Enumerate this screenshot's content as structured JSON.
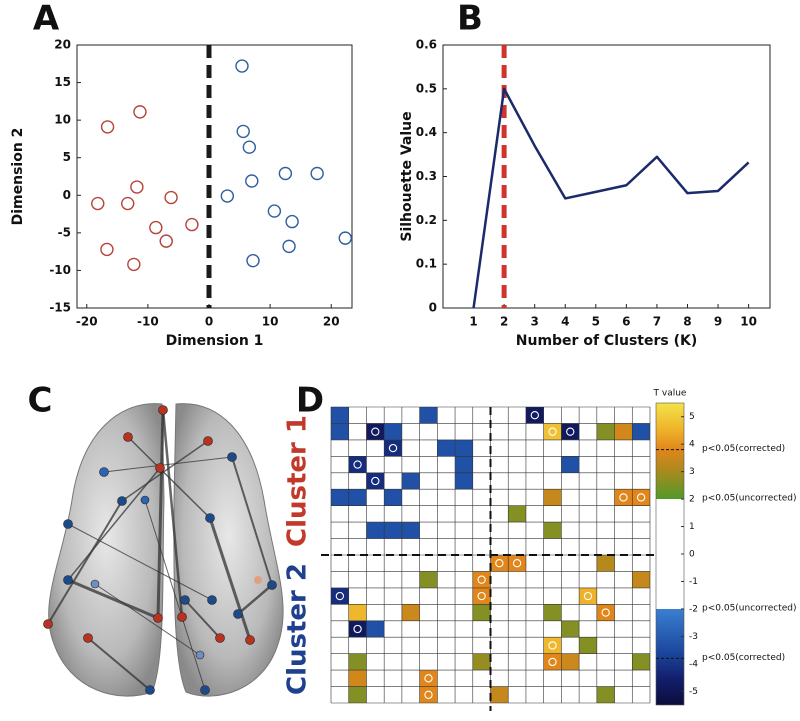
{
  "chart_data": [
    {
      "type": "scatter",
      "panel": "A",
      "xlabel": "Dimension 1",
      "ylabel": "Dimension 2",
      "xlim": [
        -21.6,
        23.4
      ],
      "xticks": [
        -20,
        -10,
        0,
        10,
        20
      ],
      "ylim": [
        -15,
        20
      ],
      "yticks": [
        -15,
        -10,
        -5,
        0,
        5,
        10,
        15,
        20
      ],
      "vline": 0,
      "vline_color": "#1a1a1a",
      "series": [
        {
          "color": "#b5443a",
          "x": [
            -16.6,
            -11.3,
            -18.2,
            -11.8,
            -13.3,
            -6.2,
            -8.7,
            -2.8,
            -7.0,
            -16.7,
            -12.3
          ],
          "y": [
            9.1,
            11.1,
            -1.1,
            1.1,
            -1.1,
            -0.3,
            -4.3,
            -3.9,
            -6.1,
            -7.2,
            -9.2
          ]
        },
        {
          "color": "#2f5f9e",
          "x": [
            5.4,
            5.6,
            6.6,
            7.0,
            3.0,
            12.5,
            17.7,
            10.7,
            13.6,
            13.1,
            7.2,
            22.3
          ],
          "y": [
            17.2,
            8.5,
            6.4,
            1.9,
            -0.1,
            2.9,
            2.9,
            -2.1,
            -3.5,
            -6.8,
            -8.7,
            -5.7
          ]
        }
      ]
    },
    {
      "type": "line",
      "panel": "B",
      "xlabel": "Number of Clusters (K)",
      "ylabel": "Silhouette Value",
      "x": [
        1,
        2,
        3,
        4,
        5,
        6,
        7,
        8,
        9,
        10
      ],
      "values": [
        0,
        0.5,
        0.37,
        0.25,
        0.265,
        0.28,
        0.345,
        0.262,
        0.267,
        0.332
      ],
      "color": "#1b2a6b",
      "xlim": [
        0,
        10.7
      ],
      "xticks": [
        1,
        2,
        3,
        4,
        5,
        6,
        7,
        8,
        9,
        10
      ],
      "ylim": [
        0,
        0.6
      ],
      "yticks": [
        0,
        0.1,
        0.2,
        0.3,
        0.4,
        0.5,
        0.6
      ],
      "vline": 2,
      "vline_color": "#d0342c"
    },
    {
      "type": "image",
      "panel": "C"
    },
    {
      "type": "heatmap",
      "panel": "D",
      "colorbar_title": "T value",
      "group_labels": [
        {
          "label": "Cluster 1",
          "color": "#c0392b"
        },
        {
          "label": "Cluster 2",
          "color": "#1f3f8f"
        }
      ],
      "divider": 9,
      "values": [
        [
          -3.3,
          null,
          null,
          null,
          null,
          -3.3,
          null,
          null,
          null,
          null,
          null,
          -4.8,
          null,
          null,
          null,
          null,
          null,
          null
        ],
        [
          -3.3,
          null,
          -4.8,
          -3.3,
          null,
          null,
          null,
          null,
          null,
          null,
          null,
          null,
          4.8,
          -4.8,
          null,
          2.6,
          3.6,
          -3.3
        ],
        [
          null,
          null,
          null,
          -4.2,
          null,
          null,
          -3.3,
          -3.3,
          null,
          null,
          null,
          null,
          null,
          null,
          null,
          null,
          null,
          null
        ],
        [
          null,
          -4.2,
          null,
          null,
          null,
          null,
          null,
          -3.3,
          null,
          null,
          null,
          null,
          null,
          -3.3,
          null,
          null,
          null,
          null
        ],
        [
          null,
          null,
          -4.2,
          null,
          -3.3,
          null,
          null,
          -3.3,
          null,
          null,
          null,
          null,
          null,
          null,
          null,
          null,
          null,
          null
        ],
        [
          -3.3,
          -3.3,
          null,
          -3.3,
          null,
          null,
          null,
          null,
          null,
          null,
          null,
          null,
          3.4,
          null,
          null,
          null,
          3.8,
          3.8
        ],
        [
          null,
          null,
          null,
          null,
          null,
          null,
          null,
          null,
          null,
          null,
          2.6,
          null,
          null,
          null,
          null,
          null,
          null,
          null
        ],
        [
          null,
          null,
          -3.3,
          -3.3,
          -3.3,
          null,
          null,
          null,
          null,
          null,
          null,
          null,
          2.6,
          null,
          null,
          null,
          null,
          null
        ],
        [
          null,
          null,
          null,
          null,
          null,
          null,
          null,
          null,
          null,
          null,
          null,
          null,
          null,
          null,
          null,
          null,
          null,
          null
        ],
        [
          null,
          null,
          null,
          null,
          null,
          null,
          null,
          null,
          null,
          3.8,
          3.8,
          null,
          null,
          null,
          null,
          3.2,
          null,
          null
        ],
        [
          null,
          null,
          null,
          null,
          null,
          2.6,
          null,
          null,
          3.8,
          null,
          null,
          null,
          null,
          null,
          null,
          null,
          null,
          3.4
        ],
        [
          -4.2,
          null,
          null,
          null,
          null,
          null,
          null,
          null,
          3.8,
          null,
          null,
          null,
          null,
          null,
          4.5,
          null,
          null,
          null
        ],
        [
          null,
          4.6,
          null,
          null,
          3.5,
          null,
          null,
          null,
          2.6,
          null,
          null,
          null,
          2.6,
          null,
          null,
          3.8,
          null,
          null
        ],
        [
          null,
          -4.8,
          -3.3,
          null,
          null,
          null,
          null,
          null,
          null,
          null,
          null,
          null,
          null,
          2.6,
          null,
          null,
          null,
          null
        ],
        [
          null,
          null,
          null,
          null,
          null,
          null,
          null,
          null,
          null,
          null,
          null,
          null,
          4.6,
          null,
          2.6,
          null,
          null,
          null
        ],
        [
          null,
          2.6,
          null,
          null,
          null,
          null,
          null,
          null,
          2.8,
          null,
          null,
          null,
          3.8,
          3.5,
          null,
          null,
          null,
          2.6
        ],
        [
          null,
          3.6,
          null,
          null,
          null,
          3.8,
          null,
          null,
          null,
          null,
          null,
          null,
          null,
          null,
          null,
          null,
          null,
          null
        ],
        [
          null,
          2.6,
          null,
          null,
          null,
          3.8,
          null,
          null,
          null,
          3.4,
          null,
          null,
          null,
          null,
          null,
          2.6,
          null,
          null
        ]
      ],
      "circled": [
        [
          0,
          11
        ],
        [
          1,
          2
        ],
        [
          1,
          12
        ],
        [
          1,
          13
        ],
        [
          2,
          3
        ],
        [
          3,
          1
        ],
        [
          4,
          2
        ],
        [
          5,
          16
        ],
        [
          5,
          17
        ],
        [
          9,
          9
        ],
        [
          9,
          10
        ],
        [
          10,
          8
        ],
        [
          11,
          0
        ],
        [
          11,
          8
        ],
        [
          11,
          14
        ],
        [
          12,
          15
        ],
        [
          13,
          1
        ],
        [
          14,
          12
        ],
        [
          15,
          12
        ],
        [
          16,
          5
        ],
        [
          17,
          5
        ]
      ],
      "clim": [
        -5.5,
        5.5
      ],
      "cticks": [
        5,
        4,
        3,
        2,
        1,
        0,
        -1,
        -2,
        -3,
        -4,
        -5
      ],
      "colormap": [
        [
          -5.5,
          "#0c0c3c"
        ],
        [
          -4.5,
          "#14206e"
        ],
        [
          -3.5,
          "#1c4aa0"
        ],
        [
          -2,
          "#3b7fd0"
        ],
        [
          -2,
          "#ffffff"
        ],
        [
          2,
          "#ffffff"
        ],
        [
          2,
          "#4f9a2a"
        ],
        [
          3,
          "#a88a1e"
        ],
        [
          3.8,
          "#e0861a"
        ],
        [
          4.6,
          "#efb72c"
        ],
        [
          5.5,
          "#f2e34a"
        ]
      ],
      "thresholds": [
        {
          "value": 3.8,
          "label": "p<0.05(corrected)",
          "dashed": true
        },
        {
          "value": 2,
          "label": "p<0.05(uncorrected)",
          "dashed": false
        },
        {
          "value": -2,
          "label": "p<0.05(uncorrected)",
          "dashed": false
        },
        {
          "value": -3.8,
          "label": "p<0.05(corrected)",
          "dashed": true
        }
      ]
    }
  ]
}
